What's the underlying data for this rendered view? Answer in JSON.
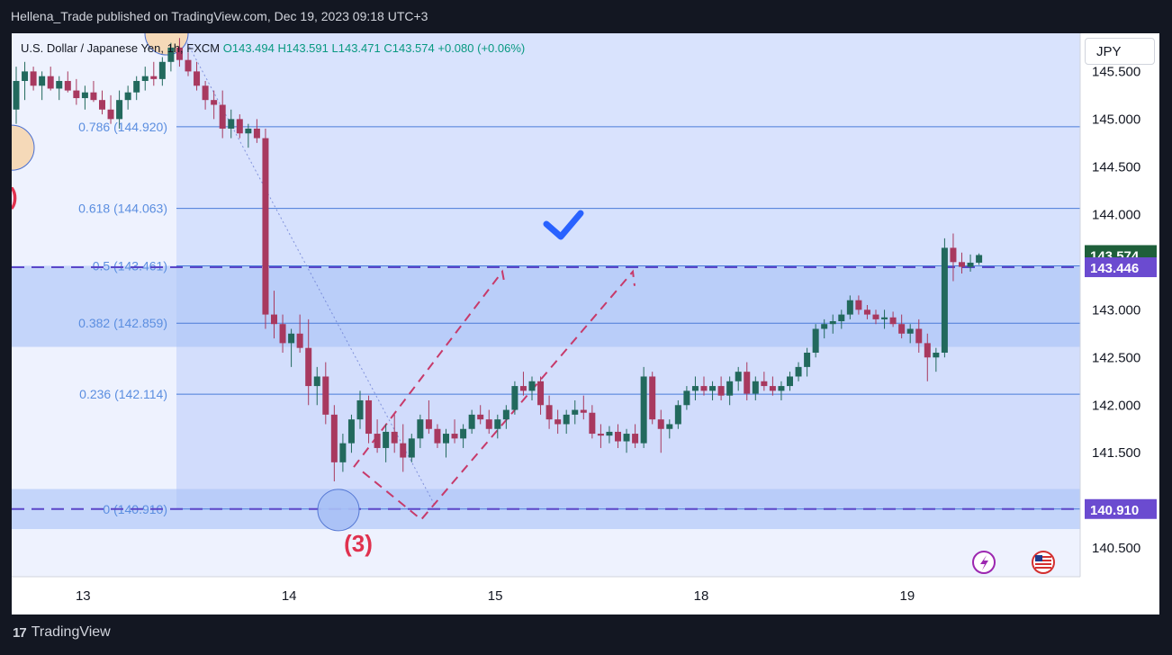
{
  "header": {
    "published_text": "Hellena_Trade published on TradingView.com, Dec 19, 2023 09:18 UTC+3"
  },
  "legend": {
    "symbol": "U.S. Dollar / Japanese Yen, 1h, FXCM",
    "open": "O143.494",
    "high": "H143.591",
    "low": "L143.471",
    "close": "C143.574",
    "change": "+0.080 (+0.06%)"
  },
  "currency_label": "JPY",
  "footer": {
    "brand": "TradingView"
  },
  "colors": {
    "up": "#22695d",
    "down": "#a8395f",
    "fib_band": "#c8d6fb",
    "fib_line": "#4a7bd8",
    "fib_label": "#5b8ee0",
    "dashed_level": "#5b46c8",
    "price_tag_current": "#1e5f3a",
    "price_tag_level": "#6b4bd0",
    "wave_label": "#e0314e",
    "checkmark": "#2962ff"
  },
  "chart_data": {
    "type": "candlestick",
    "symbol": "USDJPY",
    "timeframe": "1h",
    "ylim": [
      140.2,
      145.9
    ],
    "y_ticks": [
      "145.500",
      "145.000",
      "144.500",
      "144.000",
      "143.000",
      "142.500",
      "142.000",
      "141.500",
      "140.500"
    ],
    "y_tick_values": [
      145.5,
      145.0,
      144.5,
      144.0,
      143.0,
      142.5,
      142.0,
      141.5,
      140.5
    ],
    "x_labels": [
      {
        "label": "13",
        "index": 10
      },
      {
        "label": "14",
        "index": 40
      },
      {
        "label": "15",
        "index": 70
      },
      {
        "label": "18",
        "index": 100
      },
      {
        "label": "19",
        "index": 130
      }
    ],
    "fib_levels": [
      {
        "label": "0.786 (144.920)",
        "price": 144.92
      },
      {
        "label": "0.618 (144.063)",
        "price": 144.063
      },
      {
        "label": "0.5 (143.461)",
        "price": 143.461
      },
      {
        "label": "0.382 (142.859)",
        "price": 142.859
      },
      {
        "label": "0.236 (142.114)",
        "price": 142.114
      },
      {
        "label": "0 (140.910)",
        "price": 140.91
      }
    ],
    "dashed_levels": [
      143.446,
      140.91
    ],
    "price_tags": [
      {
        "label": "143.574",
        "price": 143.574,
        "kind": "current"
      },
      {
        "label": "143.446",
        "price": 143.446,
        "kind": "level"
      },
      {
        "label": "140.910",
        "price": 140.91,
        "kind": "level"
      }
    ],
    "wave_label": "(3)",
    "candles": [
      [
        145.1,
        145.55,
        144.95,
        145.4
      ],
      [
        145.4,
        145.6,
        145.2,
        145.5
      ],
      [
        145.5,
        145.55,
        145.3,
        145.35
      ],
      [
        145.35,
        145.5,
        145.2,
        145.45
      ],
      [
        145.45,
        145.55,
        145.3,
        145.32
      ],
      [
        145.32,
        145.45,
        145.2,
        145.4
      ],
      [
        145.4,
        145.5,
        145.28,
        145.3
      ],
      [
        145.3,
        145.42,
        145.15,
        145.22
      ],
      [
        145.22,
        145.35,
        145.1,
        145.28
      ],
      [
        145.28,
        145.4,
        145.18,
        145.2
      ],
      [
        145.2,
        145.3,
        145.05,
        145.1
      ],
      [
        145.1,
        145.25,
        144.95,
        145.0
      ],
      [
        145.0,
        145.3,
        144.9,
        145.2
      ],
      [
        145.2,
        145.35,
        145.1,
        145.28
      ],
      [
        145.28,
        145.45,
        145.2,
        145.4
      ],
      [
        145.4,
        145.55,
        145.3,
        145.45
      ],
      [
        145.45,
        145.6,
        145.35,
        145.42
      ],
      [
        145.42,
        145.65,
        145.35,
        145.6
      ],
      [
        145.6,
        145.8,
        145.5,
        145.75
      ],
      [
        145.75,
        145.85,
        145.55,
        145.62
      ],
      [
        145.62,
        145.7,
        145.45,
        145.5
      ],
      [
        145.5,
        145.6,
        145.3,
        145.35
      ],
      [
        145.35,
        145.4,
        145.1,
        145.2
      ],
      [
        145.2,
        145.3,
        145.0,
        145.15
      ],
      [
        145.15,
        145.3,
        144.8,
        144.9
      ],
      [
        144.9,
        145.1,
        144.8,
        145.0
      ],
      [
        145.0,
        145.05,
        144.8,
        144.85
      ],
      [
        144.85,
        144.95,
        144.7,
        144.9
      ],
      [
        144.9,
        145.0,
        144.75,
        144.8
      ],
      [
        144.8,
        144.9,
        142.8,
        142.95
      ],
      [
        142.95,
        143.2,
        142.7,
        142.85
      ],
      [
        142.85,
        142.95,
        142.55,
        142.65
      ],
      [
        142.65,
        142.8,
        142.4,
        142.75
      ],
      [
        142.75,
        142.95,
        142.55,
        142.6
      ],
      [
        142.6,
        142.9,
        142.0,
        142.2
      ],
      [
        142.2,
        142.4,
        142.0,
        142.3
      ],
      [
        142.3,
        142.45,
        141.8,
        141.9
      ],
      [
        141.9,
        142.0,
        141.2,
        141.4
      ],
      [
        141.4,
        141.7,
        141.3,
        141.6
      ],
      [
        141.6,
        141.9,
        141.5,
        141.85
      ],
      [
        141.85,
        142.15,
        141.75,
        142.05
      ],
      [
        142.05,
        142.1,
        141.6,
        141.7
      ],
      [
        141.7,
        141.85,
        141.5,
        141.55
      ],
      [
        141.55,
        141.8,
        141.4,
        141.72
      ],
      [
        141.72,
        141.9,
        141.5,
        141.6
      ],
      [
        141.6,
        141.8,
        141.3,
        141.45
      ],
      [
        141.45,
        141.7,
        141.4,
        141.65
      ],
      [
        141.65,
        141.9,
        141.55,
        141.85
      ],
      [
        141.85,
        142.05,
        141.7,
        141.75
      ],
      [
        141.75,
        141.8,
        141.55,
        141.6
      ],
      [
        141.6,
        141.75,
        141.45,
        141.7
      ],
      [
        141.7,
        141.85,
        141.6,
        141.65
      ],
      [
        141.65,
        141.8,
        141.55,
        141.75
      ],
      [
        141.75,
        141.95,
        141.7,
        141.9
      ],
      [
        141.9,
        142.0,
        141.8,
        141.85
      ],
      [
        141.85,
        141.95,
        141.7,
        141.75
      ],
      [
        141.75,
        141.9,
        141.65,
        141.85
      ],
      [
        141.85,
        142.0,
        141.75,
        141.95
      ],
      [
        141.95,
        142.25,
        141.9,
        142.2
      ],
      [
        142.2,
        142.35,
        142.1,
        142.15
      ],
      [
        142.15,
        142.3,
        142.05,
        142.25
      ],
      [
        142.25,
        142.3,
        141.9,
        142.0
      ],
      [
        142.0,
        142.1,
        141.75,
        141.85
      ],
      [
        141.85,
        141.95,
        141.7,
        141.8
      ],
      [
        141.8,
        141.95,
        141.7,
        141.9
      ],
      [
        141.9,
        142.05,
        141.8,
        141.95
      ],
      [
        141.95,
        142.1,
        141.85,
        141.92
      ],
      [
        141.92,
        142.0,
        141.65,
        141.7
      ],
      [
        141.7,
        141.8,
        141.55,
        141.68
      ],
      [
        141.68,
        141.78,
        141.6,
        141.72
      ],
      [
        141.72,
        141.8,
        141.55,
        141.62
      ],
      [
        141.62,
        141.75,
        141.5,
        141.7
      ],
      [
        141.7,
        141.8,
        141.55,
        141.6
      ],
      [
        141.6,
        142.4,
        141.55,
        142.3
      ],
      [
        142.3,
        142.35,
        141.8,
        141.85
      ],
      [
        141.85,
        141.95,
        141.5,
        141.75
      ],
      [
        141.75,
        141.85,
        141.65,
        141.8
      ],
      [
        141.8,
        142.05,
        141.75,
        142.0
      ],
      [
        142.0,
        142.2,
        141.95,
        142.15
      ],
      [
        142.15,
        142.3,
        142.05,
        142.2
      ],
      [
        142.2,
        142.3,
        142.1,
        142.15
      ],
      [
        142.15,
        142.25,
        142.05,
        142.2
      ],
      [
        142.2,
        142.3,
        142.05,
        142.1
      ],
      [
        142.1,
        142.3,
        142.0,
        142.25
      ],
      [
        142.25,
        142.4,
        142.15,
        142.35
      ],
      [
        142.35,
        142.45,
        142.05,
        142.12
      ],
      [
        142.12,
        142.3,
        142.05,
        142.25
      ],
      [
        142.25,
        142.35,
        142.15,
        142.2
      ],
      [
        142.2,
        142.3,
        142.1,
        142.15
      ],
      [
        142.15,
        142.25,
        142.05,
        142.2
      ],
      [
        142.2,
        142.35,
        142.15,
        142.3
      ],
      [
        142.3,
        142.45,
        142.25,
        142.4
      ],
      [
        142.4,
        142.6,
        142.3,
        142.55
      ],
      [
        142.55,
        142.85,
        142.5,
        142.8
      ],
      [
        142.8,
        142.9,
        142.7,
        142.85
      ],
      [
        142.85,
        142.95,
        142.75,
        142.88
      ],
      [
        142.88,
        143.0,
        142.8,
        142.95
      ],
      [
        142.95,
        143.15,
        142.9,
        143.1
      ],
      [
        143.1,
        143.15,
        142.95,
        143.0
      ],
      [
        143.0,
        143.05,
        142.9,
        142.95
      ],
      [
        142.95,
        143.0,
        142.85,
        142.9
      ],
      [
        142.9,
        143.0,
        142.8,
        142.92
      ],
      [
        142.92,
        142.98,
        142.82,
        142.85
      ],
      [
        142.85,
        142.95,
        142.7,
        142.75
      ],
      [
        142.75,
        142.85,
        142.65,
        142.8
      ],
      [
        142.8,
        142.9,
        142.55,
        142.65
      ],
      [
        142.65,
        142.75,
        142.25,
        142.5
      ],
      [
        142.5,
        142.6,
        142.35,
        142.55
      ],
      [
        142.55,
        143.75,
        142.5,
        143.65
      ],
      [
        143.65,
        143.8,
        143.3,
        143.5
      ],
      [
        143.5,
        143.6,
        143.38,
        143.45
      ],
      [
        143.45,
        143.58,
        143.4,
        143.494
      ],
      [
        143.494,
        143.591,
        143.471,
        143.574
      ]
    ]
  }
}
